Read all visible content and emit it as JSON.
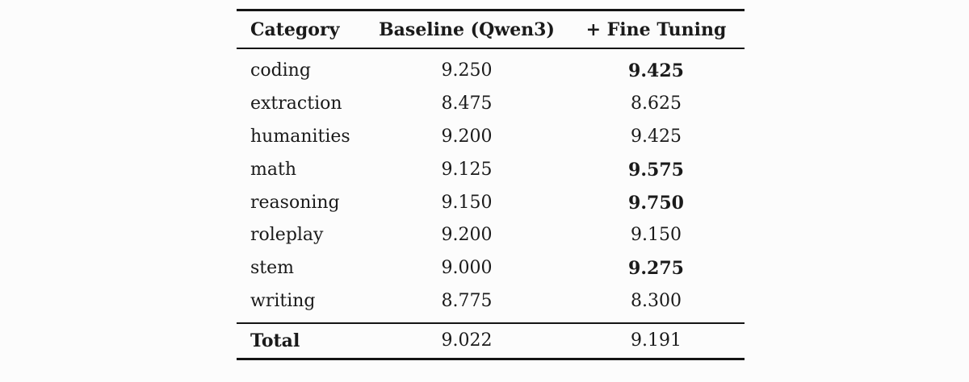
{
  "table": {
    "headers": {
      "category": "Category",
      "baseline": "Baseline (Qwen3)",
      "fine_tuning": "+ Fine Tuning"
    },
    "rows": [
      {
        "category": "coding",
        "baseline": "9.250",
        "fine_tuning": "9.425",
        "fine_tuning_best": true
      },
      {
        "category": "extraction",
        "baseline": "8.475",
        "fine_tuning": "8.625",
        "fine_tuning_best": false
      },
      {
        "category": "humanities",
        "baseline": "9.200",
        "fine_tuning": "9.425",
        "fine_tuning_best": false
      },
      {
        "category": "math",
        "baseline": "9.125",
        "fine_tuning": "9.575",
        "fine_tuning_best": true
      },
      {
        "category": "reasoning",
        "baseline": "9.150",
        "fine_tuning": "9.750",
        "fine_tuning_best": true
      },
      {
        "category": "roleplay",
        "baseline": "9.200",
        "fine_tuning": "9.150",
        "fine_tuning_best": false
      },
      {
        "category": "stem",
        "baseline": "9.000",
        "fine_tuning": "9.275",
        "fine_tuning_best": true
      },
      {
        "category": "writing",
        "baseline": "8.775",
        "fine_tuning": "8.300",
        "fine_tuning_best": false
      }
    ],
    "total": {
      "label": "Total",
      "baseline": "9.022",
      "fine_tuning": "9.191"
    }
  },
  "chart_data": {
    "type": "table",
    "title": "",
    "columns": [
      "Category",
      "Baseline (Qwen3)",
      "+ Fine Tuning"
    ],
    "rows": [
      [
        "coding",
        9.25,
        9.425
      ],
      [
        "extraction",
        8.475,
        8.625
      ],
      [
        "humanities",
        9.2,
        9.425
      ],
      [
        "math",
        9.125,
        9.575
      ],
      [
        "reasoning",
        9.15,
        9.75
      ],
      [
        "roleplay",
        9.2,
        9.15
      ],
      [
        "stem",
        9.0,
        9.275
      ],
      [
        "writing",
        8.775,
        8.3
      ]
    ],
    "total_row": [
      "Total",
      9.022,
      9.191
    ],
    "bold_fine_tuning_categories": [
      "coding",
      "math",
      "reasoning",
      "stem"
    ],
    "layout": "booktabs-style LaTeX table, centered, white background"
  },
  "colors": {
    "text": "#1a1a1a",
    "rule": "#141414",
    "background": "#fcfcfc"
  }
}
